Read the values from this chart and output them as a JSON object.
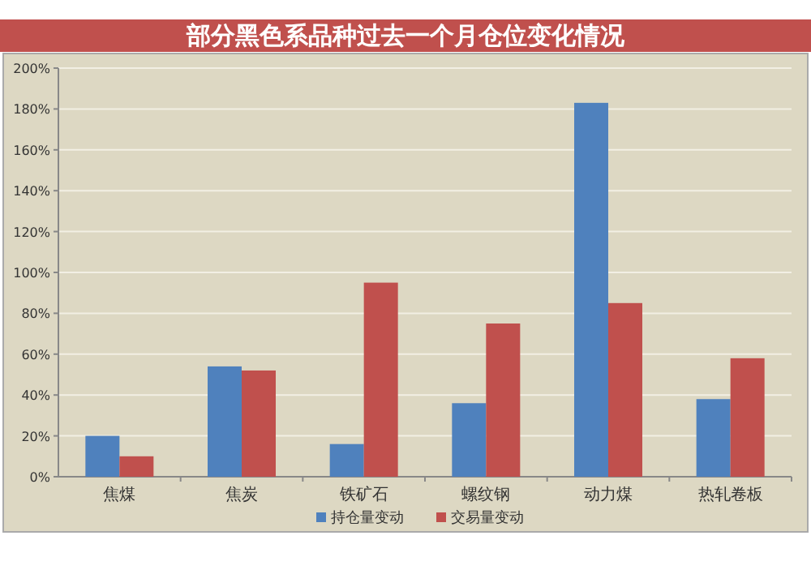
{
  "chart_data": {
    "type": "bar",
    "title": "部分黑色系品种过去一个月仓位变化情况",
    "categories": [
      "焦煤",
      "焦炭",
      "铁矿石",
      "螺纹钢",
      "动力煤",
      "热轧卷板"
    ],
    "series": [
      {
        "name": "持仓量变动",
        "color": "#4f81bd",
        "values": [
          20,
          54,
          16,
          36,
          183,
          38
        ]
      },
      {
        "name": "交易量变动",
        "color": "#c0504d",
        "values": [
          10,
          52,
          95,
          75,
          85,
          58
        ]
      }
    ],
    "ylim": [
      0,
      200
    ],
    "yticks": [
      {
        "value": 0,
        "label": "0%"
      },
      {
        "value": 20,
        "label": "20%"
      },
      {
        "value": 40,
        "label": "40%"
      },
      {
        "value": 60,
        "label": "60%"
      },
      {
        "value": 80,
        "label": "80%"
      },
      {
        "value": 100,
        "label": "100%"
      },
      {
        "value": 120,
        "label": "120%"
      },
      {
        "value": 140,
        "label": "140%"
      },
      {
        "value": 160,
        "label": "160%"
      },
      {
        "value": 180,
        "label": "180%"
      },
      {
        "value": 200,
        "label": "200%"
      }
    ],
    "grid": "y",
    "legend": "bottom"
  }
}
